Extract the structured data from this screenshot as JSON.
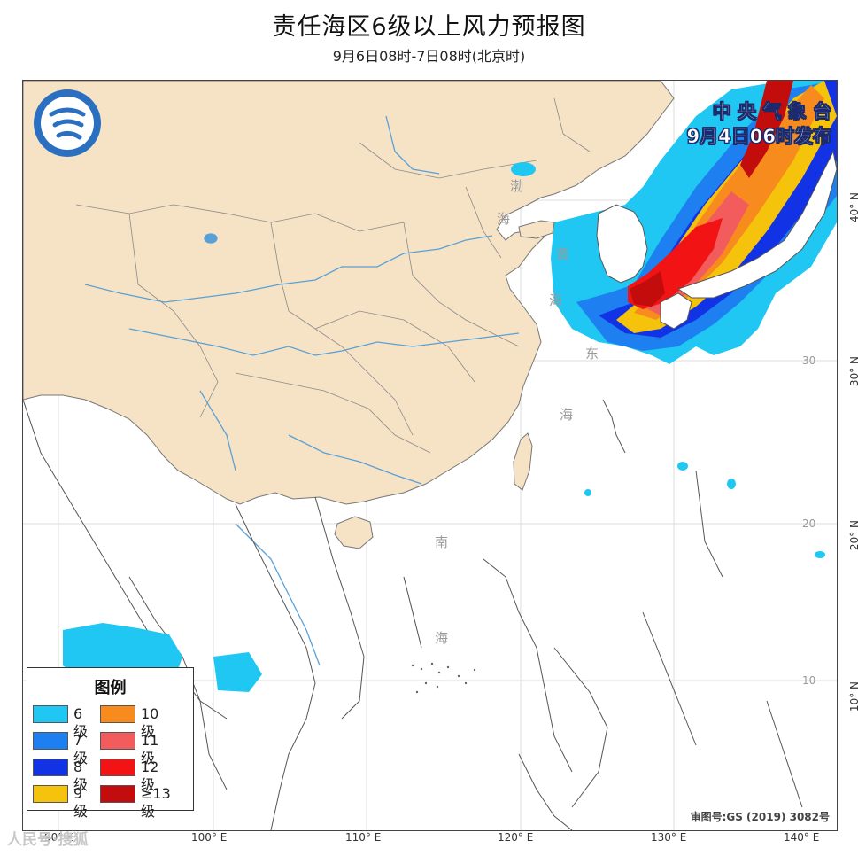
{
  "header": {
    "title": "责任海区6级以上风力预报图",
    "subtitle": "9月6日08时-7日08时(北京时)"
  },
  "issuer": {
    "agency": "中 央 气 象 台",
    "issued": "9月4日06时发布"
  },
  "sea_labels": {
    "yellow_sea_1": "黄",
    "yellow_sea_2": "海",
    "east_sea_1": "东",
    "east_sea_2": "海",
    "south_sea_1": "南",
    "south_sea_2": "海",
    "bohai": "渤",
    "bohai_2": "海"
  },
  "axes": {
    "longitudes": [
      "90° E",
      "100° E",
      "110° E",
      "120° E",
      "130° E",
      "140° E"
    ],
    "latitudes": [
      "40° N",
      "30° N",
      "20° N",
      "10° N"
    ],
    "inner_lat_ticks": [
      "30",
      "20",
      "10"
    ]
  },
  "legend": {
    "title": "图例",
    "items": [
      {
        "label": "6级",
        "color": "#1fc7f2"
      },
      {
        "label": "7级",
        "color": "#1e7ff0"
      },
      {
        "label": "8级",
        "color": "#1232e6"
      },
      {
        "label": "9级",
        "color": "#f6c30c"
      },
      {
        "label": "10级",
        "color": "#f78b1d"
      },
      {
        "label": "11级",
        "color": "#f35c5c"
      },
      {
        "label": "12级",
        "color": "#f21414"
      },
      {
        "label": "≥13级",
        "color": "#c30c0c"
      }
    ]
  },
  "footer": {
    "approval": "审图号:GS (2019) 3082号",
    "watermark": "人民号·搜狐"
  },
  "colors": {
    "land_china": "#f6e2c4",
    "land_other": "#ffffff",
    "border": "#777777",
    "river": "#5aa0d8"
  }
}
